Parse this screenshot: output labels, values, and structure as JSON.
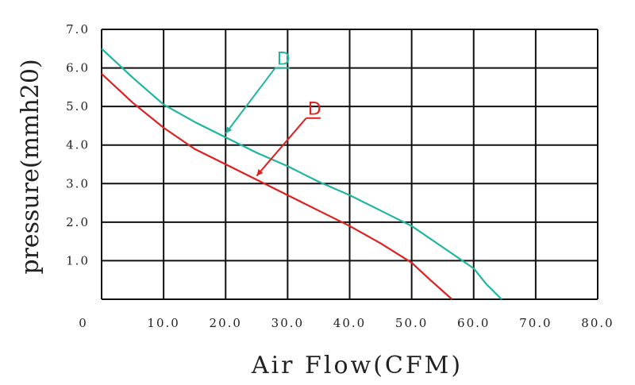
{
  "chart_data": {
    "type": "line",
    "title": "",
    "xlabel": "Air Flow(CFM)",
    "ylabel": "pressure(mmh20)",
    "xlim": [
      0,
      80
    ],
    "ylim": [
      0,
      7
    ],
    "grid": true,
    "x_ticks": [
      "0",
      "10.0",
      "20.0",
      "30.0",
      "40.0",
      "50.0",
      "60.0",
      "70.0",
      "80.0"
    ],
    "y_ticks": [
      "1.0",
      "2.0",
      "3.0",
      "4.0",
      "5.0",
      "6.0",
      "7.0"
    ],
    "series": [
      {
        "name": "D",
        "color": "#1fb5a0",
        "x": [
          0,
          5,
          10,
          15,
          20,
          25,
          30,
          35,
          40,
          45,
          50,
          55,
          60,
          62,
          64.5
        ],
        "y": [
          6.5,
          5.75,
          5.05,
          4.6,
          4.2,
          3.8,
          3.45,
          3.05,
          2.7,
          2.3,
          1.9,
          1.35,
          0.8,
          0.4,
          0
        ],
        "callout": {
          "text": "D",
          "at": [
            20,
            4.3
          ],
          "label_at": [
            28,
            6.0
          ]
        }
      },
      {
        "name": "D",
        "color": "#dd2020",
        "x": [
          0,
          5,
          10,
          15,
          20,
          25,
          30,
          35,
          40,
          45,
          50,
          53,
          56.5
        ],
        "y": [
          5.85,
          5.1,
          4.45,
          3.9,
          3.5,
          3.1,
          2.7,
          2.3,
          1.9,
          1.45,
          0.95,
          0.5,
          0
        ],
        "callout": {
          "text": "D",
          "at": [
            25,
            3.2
          ],
          "label_at": [
            33,
            4.7
          ]
        }
      }
    ]
  }
}
